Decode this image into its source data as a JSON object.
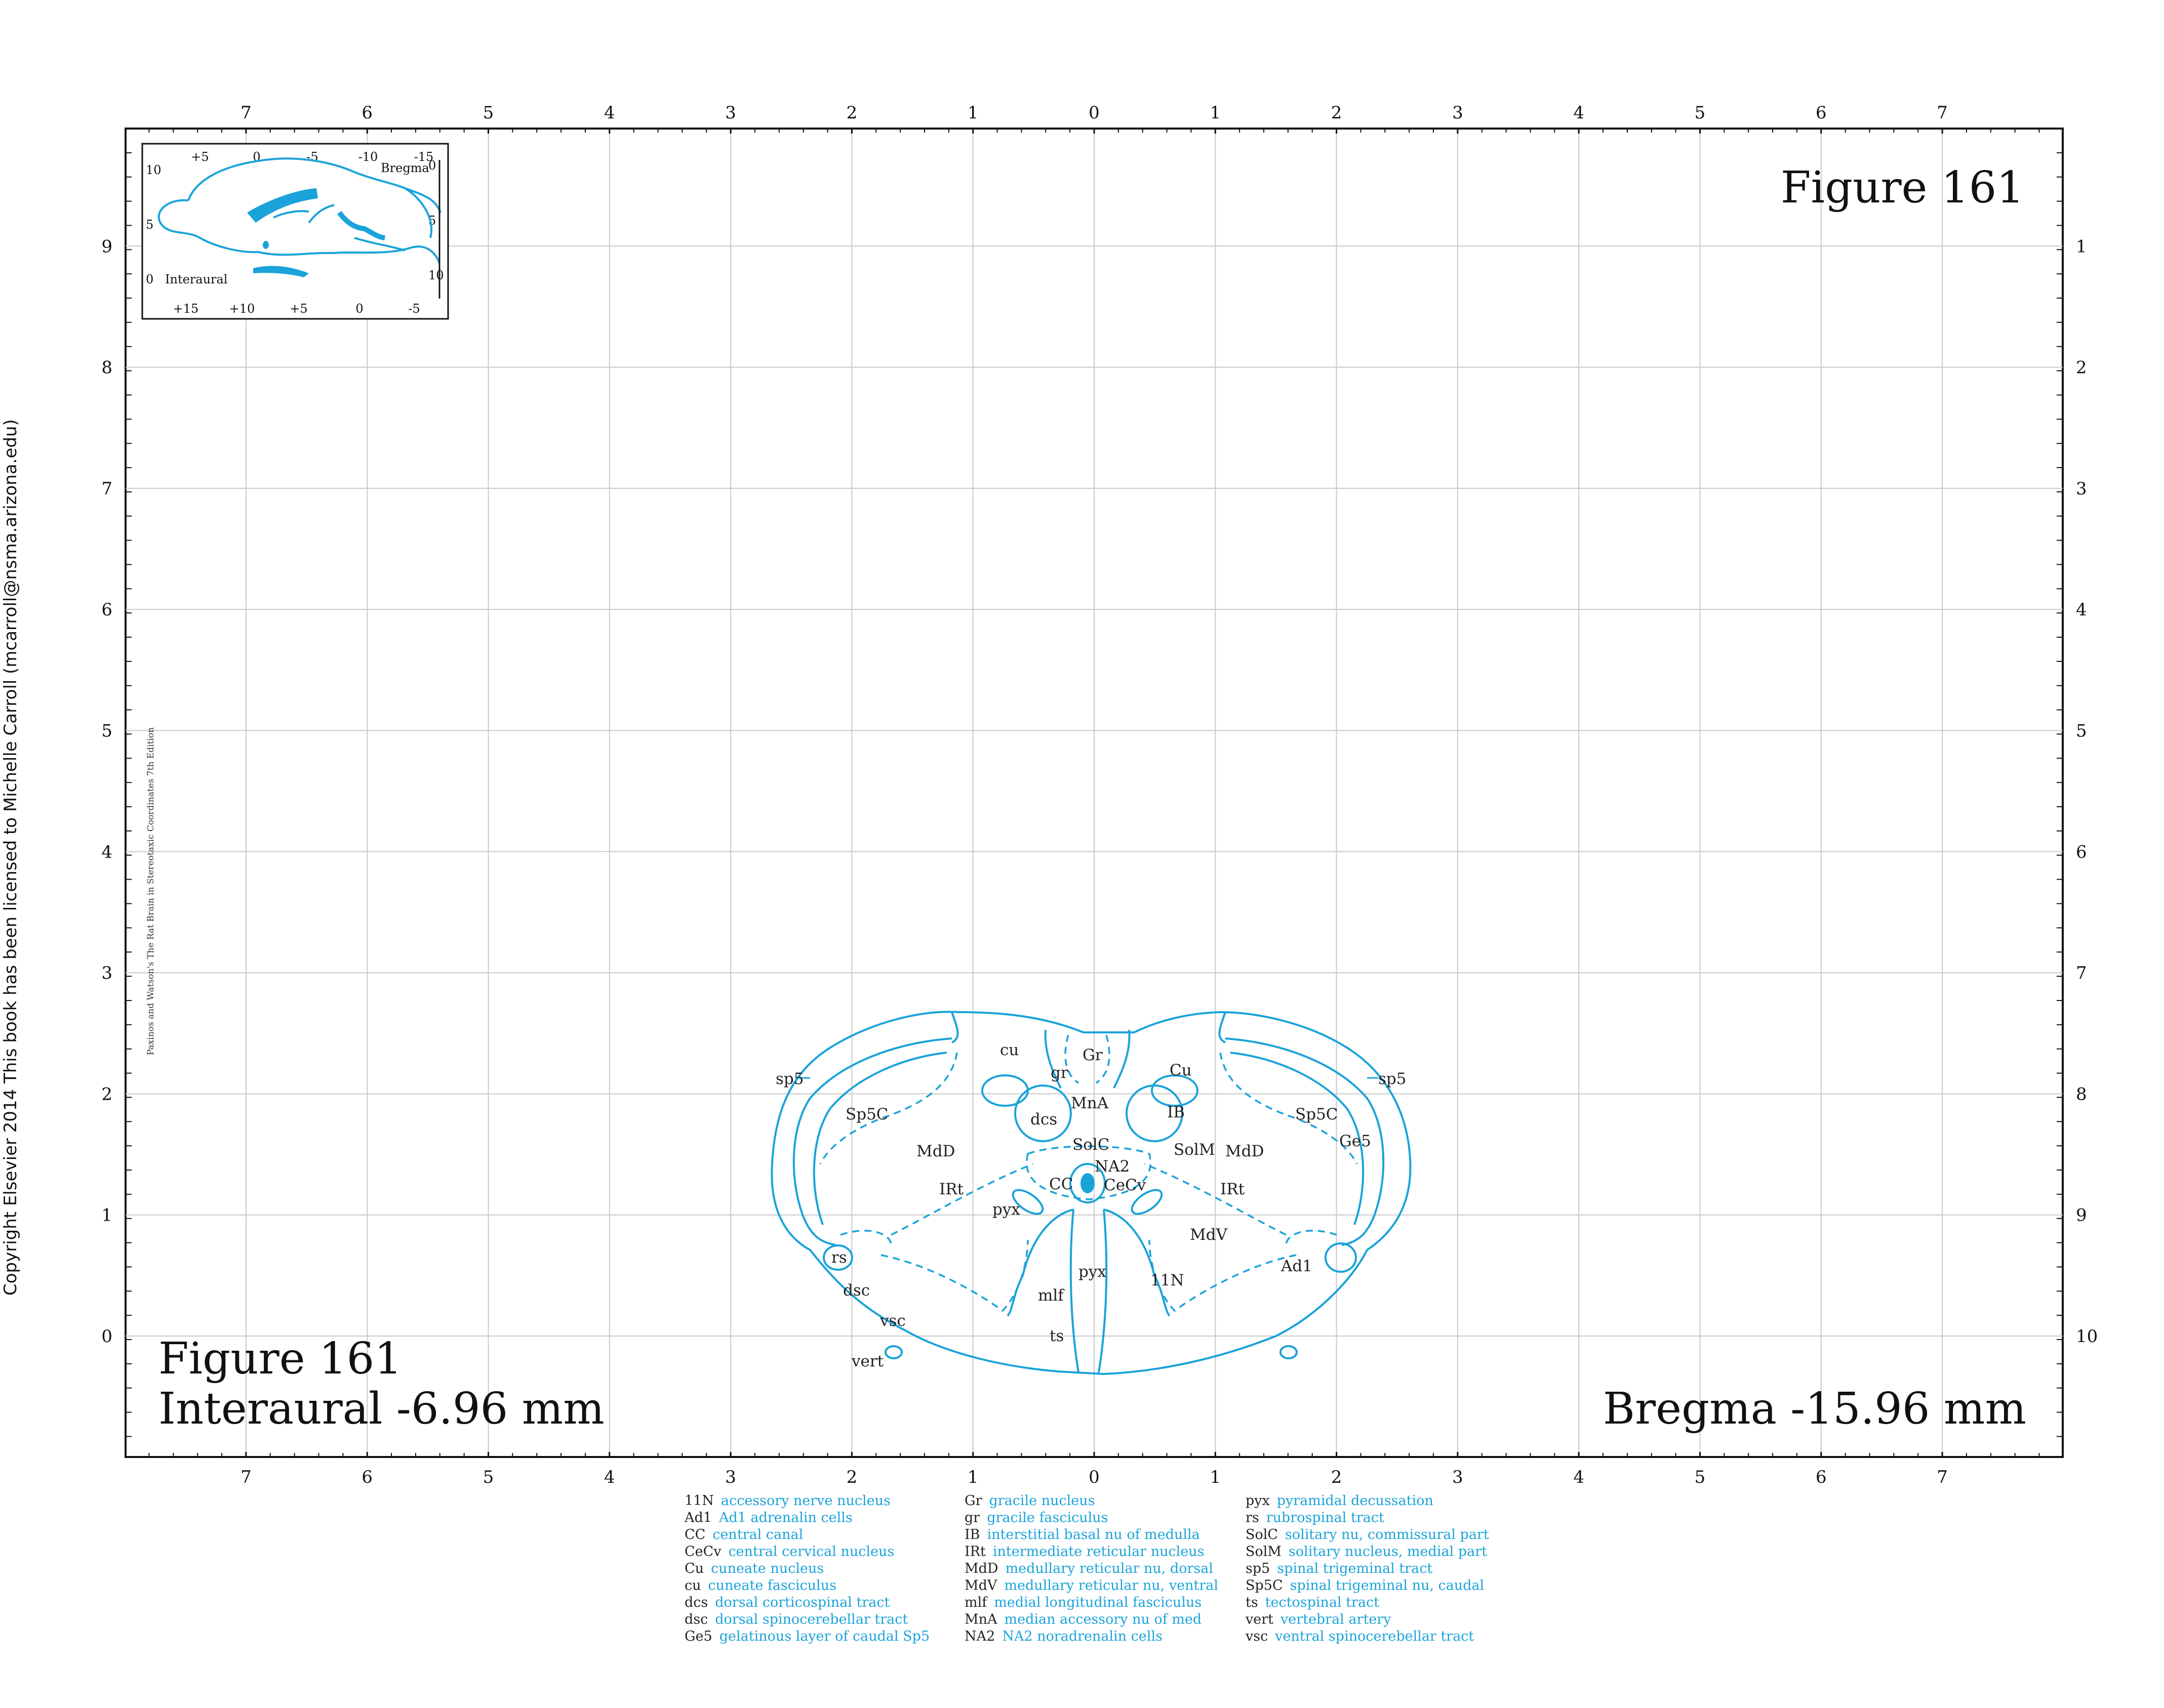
{
  "figure_title_top": "Figure 161",
  "figure_title_bottom": "Figure 161",
  "interaural": "Interaural -6.96 mm",
  "bregma": "Bregma -15.96 mm",
  "copyright": "Copyright Elsevier 2014 This book has been licensed to Michelle Carroll (mcarroll@nsma.arizona.edu)",
  "book_credit": "Paxinos and Watson's The Rat Brain in Stereotaxic Coordinates     7th Edition",
  "axes": {
    "top_ticks": [
      "7",
      "6",
      "5",
      "4",
      "3",
      "2",
      "1",
      "0",
      "1",
      "2",
      "3",
      "4",
      "5",
      "6",
      "7"
    ],
    "bottom_ticks": [
      "7",
      "6",
      "5",
      "4",
      "3",
      "2",
      "1",
      "0",
      "1",
      "2",
      "3",
      "4",
      "5",
      "6",
      "7"
    ],
    "left_ticks": [
      "9",
      "8",
      "7",
      "6",
      "5",
      "4",
      "3",
      "2",
      "1",
      "0"
    ],
    "right_ticks": [
      "1",
      "2",
      "3",
      "4",
      "5",
      "6",
      "7",
      "8",
      "9",
      "10"
    ]
  },
  "inset": {
    "top_ticks": [
      "+5",
      "0",
      "-5",
      "-10",
      "-15"
    ],
    "bottom_ticks": [
      "+15",
      "+10",
      "+5",
      "0",
      "-5"
    ],
    "left_ticks": [
      "10",
      "5",
      "0"
    ],
    "right_ticks": [
      "0",
      "5",
      "10"
    ],
    "bregma_label": "Bregma",
    "interaural_label": "Interaural"
  },
  "colors": {
    "accent": "#1aa3d9",
    "grid": "#c9c9c9",
    "text": "#111111"
  },
  "structure_labels": [
    {
      "text": "sp5"
    },
    {
      "text": "cu"
    },
    {
      "text": "Gr"
    },
    {
      "text": "gr"
    },
    {
      "text": "Cu"
    },
    {
      "text": "sp5"
    },
    {
      "text": "Sp5C"
    },
    {
      "text": "MnA"
    },
    {
      "text": "Sp5C"
    },
    {
      "text": "dcs"
    },
    {
      "text": "IB"
    },
    {
      "text": "Ge5"
    },
    {
      "text": "MdD"
    },
    {
      "text": "SolC"
    },
    {
      "text": "SolM"
    },
    {
      "text": "MdD"
    },
    {
      "text": "NA2"
    },
    {
      "text": "CC"
    },
    {
      "text": "CeCv"
    },
    {
      "text": "IRt"
    },
    {
      "text": "IRt"
    },
    {
      "text": "pyx"
    },
    {
      "text": "MdV"
    },
    {
      "text": "rs"
    },
    {
      "text": "pyx"
    },
    {
      "text": "11N"
    },
    {
      "text": "Ad1"
    },
    {
      "text": "dsc"
    },
    {
      "text": "mlf"
    },
    {
      "text": "vsc"
    },
    {
      "text": "ts"
    },
    {
      "text": "vert"
    }
  ],
  "legend": [
    [
      {
        "abbr": "11N",
        "desc": "accessory nerve nucleus"
      },
      {
        "abbr": "Ad1",
        "desc": "Ad1 adrenalin cells"
      },
      {
        "abbr": "CC",
        "desc": "central canal"
      },
      {
        "abbr": "CeCv",
        "desc": "central cervical nucleus"
      },
      {
        "abbr": "Cu",
        "desc": "cuneate nucleus"
      },
      {
        "abbr": "cu",
        "desc": "cuneate fasciculus"
      },
      {
        "abbr": "dcs",
        "desc": "dorsal corticospinal tract"
      },
      {
        "abbr": "dsc",
        "desc": "dorsal spinocerebellar tract"
      },
      {
        "abbr": "Ge5",
        "desc": "gelatinous layer of caudal Sp5"
      }
    ],
    [
      {
        "abbr": "Gr",
        "desc": "gracile nucleus"
      },
      {
        "abbr": "gr",
        "desc": "gracile fasciculus"
      },
      {
        "abbr": "IB",
        "desc": "interstitial basal nu of medulla"
      },
      {
        "abbr": "IRt",
        "desc": "intermediate reticular nucleus"
      },
      {
        "abbr": "MdD",
        "desc": "medullary reticular nu, dorsal"
      },
      {
        "abbr": "MdV",
        "desc": "medullary reticular nu, ventral"
      },
      {
        "abbr": "mlf",
        "desc": "medial longitudinal fasciculus"
      },
      {
        "abbr": "MnA",
        "desc": "median accessory nu of med"
      },
      {
        "abbr": "NA2",
        "desc": "NA2 noradrenalin cells"
      }
    ],
    [
      {
        "abbr": "pyx",
        "desc": "pyramidal decussation"
      },
      {
        "abbr": "rs",
        "desc": "rubrospinal tract"
      },
      {
        "abbr": "SolC",
        "desc": "solitary nu, commissural part"
      },
      {
        "abbr": "SolM",
        "desc": "solitary nucleus, medial part"
      },
      {
        "abbr": "sp5",
        "desc": "spinal trigeminal tract"
      },
      {
        "abbr": "Sp5C",
        "desc": "spinal trigeminal nu, caudal"
      },
      {
        "abbr": "ts",
        "desc": "tectospinal tract"
      },
      {
        "abbr": "vert",
        "desc": "vertebral artery"
      },
      {
        "abbr": "vsc",
        "desc": "ventral spinocerebellar tract"
      }
    ]
  ]
}
